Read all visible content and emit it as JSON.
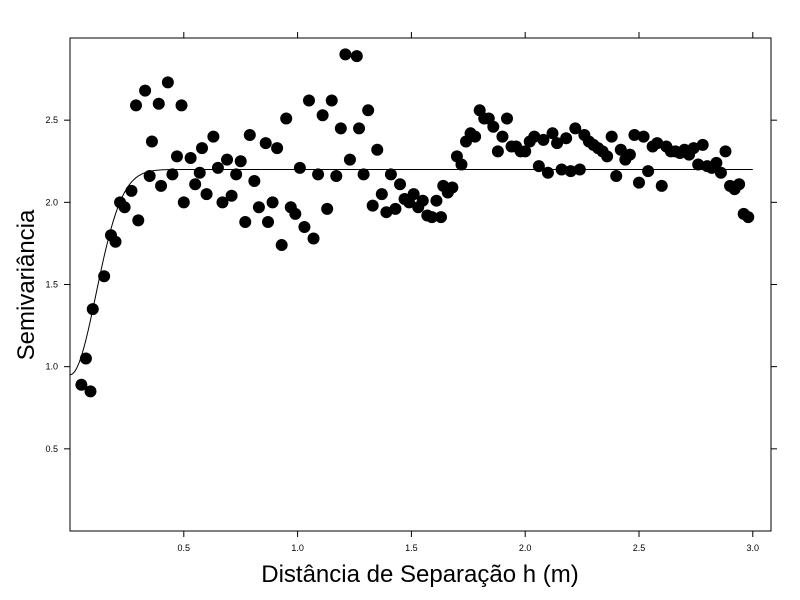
{
  "chart_data": {
    "type": "scatter",
    "title": "",
    "xlabel": "Distância de Separação h (m)",
    "ylabel": "Semivariância",
    "xlim": [
      0,
      3.08
    ],
    "ylim": [
      0,
      3.0
    ],
    "xticks": [
      0.5,
      1.0,
      1.5,
      2.0,
      2.5,
      3.0
    ],
    "xtick_labels": [
      "0.5",
      "1.0",
      "1.5",
      "2.0",
      "2.5",
      "3.0"
    ],
    "yticks": [
      0.5,
      1.0,
      1.5,
      2.0,
      2.5
    ],
    "ytick_labels": [
      "0.5",
      "1.0",
      "1.5",
      "2.0",
      "2.5"
    ],
    "grid": false,
    "legend": "none",
    "point_color": "#000000",
    "line_color": "#000000",
    "series": [
      {
        "type": "scatter",
        "points": [
          [
            0.05,
            0.89
          ],
          [
            0.07,
            1.05
          ],
          [
            0.09,
            0.85
          ],
          [
            0.1,
            1.35
          ],
          [
            0.15,
            1.55
          ],
          [
            0.18,
            1.8
          ],
          [
            0.2,
            1.76
          ],
          [
            0.22,
            2.0
          ],
          [
            0.24,
            1.97
          ],
          [
            0.27,
            2.07
          ],
          [
            0.29,
            2.59
          ],
          [
            0.3,
            1.89
          ],
          [
            0.33,
            2.68
          ],
          [
            0.35,
            2.16
          ],
          [
            0.36,
            2.37
          ],
          [
            0.39,
            2.6
          ],
          [
            0.4,
            2.1
          ],
          [
            0.43,
            2.73
          ],
          [
            0.45,
            2.17
          ],
          [
            0.47,
            2.28
          ],
          [
            0.49,
            2.59
          ],
          [
            0.5,
            2.0
          ],
          [
            0.53,
            2.27
          ],
          [
            0.55,
            2.11
          ],
          [
            0.57,
            2.18
          ],
          [
            0.58,
            2.33
          ],
          [
            0.6,
            2.05
          ],
          [
            0.63,
            2.4
          ],
          [
            0.65,
            2.21
          ],
          [
            0.67,
            2.0
          ],
          [
            0.69,
            2.26
          ],
          [
            0.71,
            2.04
          ],
          [
            0.73,
            2.17
          ],
          [
            0.75,
            2.25
          ],
          [
            0.77,
            1.88
          ],
          [
            0.79,
            2.41
          ],
          [
            0.81,
            2.13
          ],
          [
            0.83,
            1.97
          ],
          [
            0.86,
            2.36
          ],
          [
            0.87,
            1.88
          ],
          [
            0.89,
            2.0
          ],
          [
            0.91,
            2.33
          ],
          [
            0.93,
            1.74
          ],
          [
            0.95,
            2.51
          ],
          [
            0.97,
            1.97
          ],
          [
            0.99,
            1.93
          ],
          [
            1.01,
            2.21
          ],
          [
            1.03,
            1.85
          ],
          [
            1.05,
            2.62
          ],
          [
            1.07,
            1.78
          ],
          [
            1.09,
            2.17
          ],
          [
            1.11,
            2.53
          ],
          [
            1.13,
            1.96
          ],
          [
            1.15,
            2.62
          ],
          [
            1.17,
            2.16
          ],
          [
            1.19,
            2.45
          ],
          [
            1.21,
            2.9
          ],
          [
            1.23,
            2.26
          ],
          [
            1.26,
            2.89
          ],
          [
            1.27,
            2.45
          ],
          [
            1.29,
            2.17
          ],
          [
            1.31,
            2.56
          ],
          [
            1.33,
            1.98
          ],
          [
            1.35,
            2.32
          ],
          [
            1.37,
            2.05
          ],
          [
            1.39,
            1.94
          ],
          [
            1.41,
            2.17
          ],
          [
            1.43,
            1.96
          ],
          [
            1.45,
            2.11
          ],
          [
            1.47,
            2.02
          ],
          [
            1.49,
            2.0
          ],
          [
            1.51,
            2.05
          ],
          [
            1.53,
            1.97
          ],
          [
            1.55,
            2.01
          ],
          [
            1.57,
            1.92
          ],
          [
            1.59,
            1.91
          ],
          [
            1.61,
            2.01
          ],
          [
            1.63,
            1.91
          ],
          [
            1.64,
            2.1
          ],
          [
            1.66,
            2.06
          ],
          [
            1.68,
            2.09
          ],
          [
            1.7,
            2.28
          ],
          [
            1.72,
            2.23
          ],
          [
            1.74,
            2.37
          ],
          [
            1.76,
            2.42
          ],
          [
            1.78,
            2.4
          ],
          [
            1.8,
            2.56
          ],
          [
            1.82,
            2.51
          ],
          [
            1.84,
            2.51
          ],
          [
            1.86,
            2.46
          ],
          [
            1.88,
            2.31
          ],
          [
            1.9,
            2.4
          ],
          [
            1.92,
            2.51
          ],
          [
            1.94,
            2.34
          ],
          [
            1.96,
            2.34
          ],
          [
            1.98,
            2.31
          ],
          [
            2.0,
            2.31
          ],
          [
            2.02,
            2.37
          ],
          [
            2.04,
            2.4
          ],
          [
            2.06,
            2.22
          ],
          [
            2.08,
            2.38
          ],
          [
            2.1,
            2.18
          ],
          [
            2.12,
            2.42
          ],
          [
            2.14,
            2.36
          ],
          [
            2.16,
            2.2
          ],
          [
            2.18,
            2.39
          ],
          [
            2.2,
            2.19
          ],
          [
            2.22,
            2.45
          ],
          [
            2.24,
            2.2
          ],
          [
            2.26,
            2.41
          ],
          [
            2.28,
            2.37
          ],
          [
            2.3,
            2.35
          ],
          [
            2.32,
            2.33
          ],
          [
            2.34,
            2.31
          ],
          [
            2.36,
            2.28
          ],
          [
            2.38,
            2.4
          ],
          [
            2.4,
            2.16
          ],
          [
            2.42,
            2.32
          ],
          [
            2.44,
            2.26
          ],
          [
            2.46,
            2.29
          ],
          [
            2.48,
            2.41
          ],
          [
            2.5,
            2.12
          ],
          [
            2.52,
            2.4
          ],
          [
            2.54,
            2.19
          ],
          [
            2.56,
            2.34
          ],
          [
            2.58,
            2.36
          ],
          [
            2.6,
            2.1
          ],
          [
            2.62,
            2.34
          ],
          [
            2.64,
            2.31
          ],
          [
            2.66,
            2.31
          ],
          [
            2.68,
            2.3
          ],
          [
            2.7,
            2.32
          ],
          [
            2.72,
            2.29
          ],
          [
            2.74,
            2.33
          ],
          [
            2.76,
            2.23
          ],
          [
            2.78,
            2.35
          ],
          [
            2.8,
            2.22
          ],
          [
            2.82,
            2.21
          ],
          [
            2.84,
            2.24
          ],
          [
            2.86,
            2.18
          ],
          [
            2.88,
            2.31
          ],
          [
            2.9,
            2.1
          ],
          [
            2.92,
            2.08
          ],
          [
            2.94,
            2.11
          ],
          [
            2.96,
            1.93
          ],
          [
            2.98,
            1.91
          ]
        ]
      },
      {
        "type": "line",
        "model": {
          "nugget": 0.95,
          "sill": 2.2,
          "range": 0.28,
          "x_start": 0.0,
          "x_end": 3.0
        }
      }
    ]
  }
}
